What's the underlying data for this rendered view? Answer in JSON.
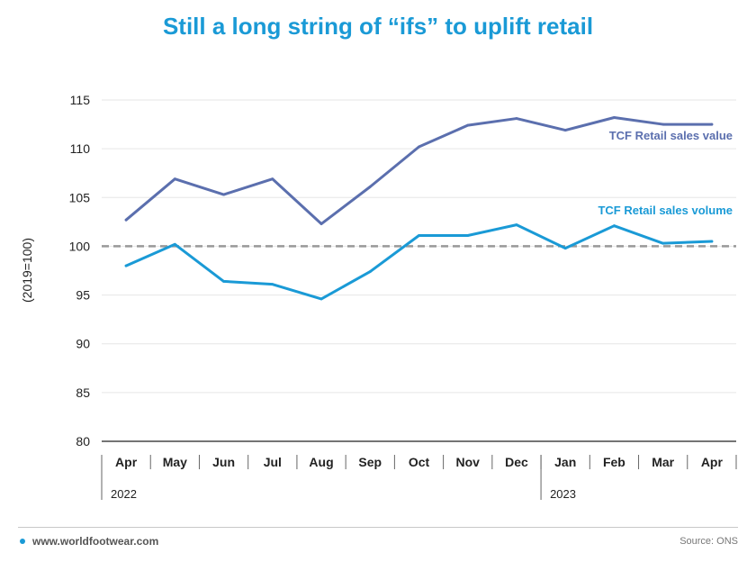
{
  "page": {
    "title": "Still a long string of “ifs” to uplift retail",
    "website": "www.worldfootwear.com",
    "source": "Source: ONS"
  },
  "chart_data": {
    "type": "line",
    "title": "Still a long string of “ifs” to uplift retail",
    "xlabel": "",
    "ylabel": "(2019=100)",
    "categories": [
      "Apr",
      "May",
      "Jun",
      "Jul",
      "Aug",
      "Sep",
      "Oct",
      "Nov",
      "Dec",
      "Jan",
      "Feb",
      "Mar",
      "Apr"
    ],
    "year_groups": [
      {
        "label": "2022",
        "start": 0,
        "end": 8
      },
      {
        "label": "2023",
        "start": 9,
        "end": 12
      }
    ],
    "ylim": [
      80,
      115
    ],
    "yticks": [
      80,
      85,
      90,
      95,
      100,
      105,
      110,
      115
    ],
    "grid": true,
    "reference_line": {
      "value": 100,
      "style": "dashed",
      "color": "#999999"
    },
    "series": [
      {
        "name": "TCF Retail sales value",
        "color": "#5b6fae",
        "values": [
          102.7,
          106.9,
          105.3,
          106.9,
          102.3,
          106.1,
          110.2,
          112.4,
          113.1,
          111.9,
          113.2,
          112.5,
          112.5
        ]
      },
      {
        "name": "TCF Retail sales volume",
        "color": "#1a9ad6",
        "values": [
          98.0,
          100.2,
          96.4,
          96.1,
          94.6,
          97.4,
          101.1,
          101.1,
          102.2,
          99.8,
          102.1,
          100.3,
          100.5
        ]
      }
    ]
  }
}
